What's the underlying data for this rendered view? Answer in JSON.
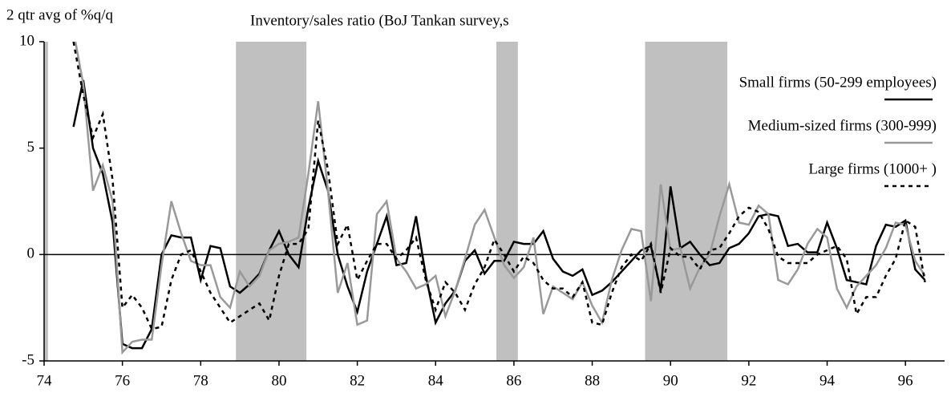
{
  "chart_data": {
    "type": "line",
    "title": "Inventory/sales ratio (BoJ Tankan survey,s",
    "y_label": "2 qtr avg of %q/q",
    "x": [
      74.75,
      75,
      75.25,
      75.5,
      75.75,
      76,
      76.25,
      76.5,
      76.75,
      77,
      77.25,
      77.5,
      77.75,
      78,
      78.25,
      78.5,
      78.75,
      79,
      79.25,
      79.5,
      79.75,
      80,
      80.25,
      80.5,
      80.75,
      81,
      81.25,
      81.5,
      81.75,
      82,
      82.25,
      82.5,
      82.75,
      83,
      83.25,
      83.5,
      83.75,
      84,
      84.25,
      84.5,
      84.75,
      85,
      85.25,
      85.5,
      85.75,
      86,
      86.25,
      86.5,
      86.75,
      87,
      87.25,
      87.5,
      87.75,
      88,
      88.25,
      88.5,
      88.75,
      89,
      89.25,
      89.5,
      89.75,
      90,
      90.25,
      90.5,
      90.75,
      91,
      91.25,
      91.5,
      91.75,
      92,
      92.25,
      92.5,
      92.75,
      93,
      93.25,
      93.5,
      93.75,
      94,
      94.25,
      94.5,
      94.75,
      95,
      95.25,
      95.5,
      95.75,
      96,
      96.25,
      96.5
    ],
    "series": [
      {
        "name": "Small firms (50-299 employees)",
        "color": "#000000",
        "style": "solid",
        "values": [
          6,
          8.2,
          5,
          3.8,
          1.5,
          -4.2,
          -4.4,
          -4.4,
          -3.5,
          0,
          0.9,
          0.8,
          0.8,
          -1.2,
          0.4,
          0.3,
          -1.5,
          -1.8,
          -1.4,
          -0.9,
          0.2,
          1.1,
          0,
          -0.6,
          2.2,
          4.4,
          3,
          0,
          -1.5,
          -2.7,
          -0.8,
          0.5,
          1.8,
          -0.5,
          -0.4,
          1.8,
          -1,
          -3.2,
          -2.3,
          -1.7,
          -0.3,
          0.2,
          -0.9,
          -0.3,
          -0.3,
          0.6,
          0.5,
          0.5,
          1.1,
          -0.2,
          -0.8,
          -1,
          -0.7,
          -1.9,
          -1.7,
          -1.3,
          -0.8,
          -0.3,
          0.2,
          0.4,
          -1.7,
          3.2,
          0.3,
          0.6,
          0,
          -0.5,
          -0.4,
          0.3,
          0.5,
          1,
          1.8,
          1.9,
          1.8,
          0.4,
          0.5,
          0.1,
          0.1,
          1.5,
          0.3,
          -1.2,
          -1.3,
          -1.4,
          0.4,
          1.4,
          1.3,
          1.6,
          -0.7,
          -1.2
        ]
      },
      {
        "name": "Medium-sized firms (300-999)",
        "color": "#999999",
        "style": "solid",
        "values": [
          10.5,
          8,
          3,
          4.2,
          2.5,
          -4.6,
          -4.1,
          -4,
          -4,
          -0.5,
          2.5,
          1,
          -0.3,
          -0.5,
          -0.5,
          -2,
          -2.5,
          -0.8,
          -1.5,
          -1,
          0.2,
          0.5,
          0.6,
          0.8,
          3.8,
          7.2,
          3,
          -1.8,
          -0.4,
          -3.3,
          -3.1,
          1.9,
          2.5,
          -0.2,
          -0.8,
          -1.6,
          -1.4,
          -1,
          -2.9,
          -1.7,
          -0.2,
          1.4,
          2.1,
          0.8,
          -0.5,
          -1.1,
          -0.6,
          0.8,
          -2.8,
          -1.5,
          -1.8,
          -2.1,
          -1.3,
          -2.4,
          -3.2,
          -1.2,
          0.2,
          1.2,
          1.1,
          -2.2,
          3.3,
          0.2,
          0.3,
          -1.6,
          -0.6,
          0,
          1.8,
          3.3,
          1.5,
          1.4,
          2.3,
          1.9,
          -1.2,
          -1.4,
          -0.7,
          0.5,
          1.2,
          0.8,
          -1.6,
          -2.5,
          -1.5,
          -1,
          -0.5,
          0.3,
          1.5,
          1.4,
          -0.3,
          -1
        ]
      },
      {
        "name": "Large firms (1000+ )",
        "color": "#000000",
        "style": "dotted",
        "values": [
          10,
          7.5,
          5.5,
          6.6,
          3.5,
          -2.5,
          -1.9,
          -2.5,
          -3.5,
          -3.4,
          -1.2,
          0,
          0.2,
          -0.8,
          -1.8,
          -2.5,
          -3.2,
          -2.9,
          -2.6,
          -2.3,
          -3.1,
          -1,
          0.5,
          0.5,
          1.2,
          6.3,
          4,
          0.5,
          1.4,
          -1.2,
          -0.3,
          0.5,
          0.5,
          -0.2,
          0.2,
          0.8,
          -1.2,
          -2.6,
          -1.3,
          -1.8,
          -2.6,
          -1.4,
          -0.6,
          0.7,
          0,
          -0.8,
          -0.1,
          -0.4,
          -1.2,
          -1.6,
          -1.6,
          -2,
          -1.3,
          -3.2,
          -3.3,
          -1.8,
          -0.6,
          0,
          -0.3,
          0.5,
          -1.8,
          0.3,
          -0.1,
          -0.1,
          -0.7,
          0.2,
          0.3,
          1,
          1.8,
          2.2,
          2,
          1.2,
          -0.1,
          -0.4,
          -0.4,
          -0.4,
          0,
          0.2,
          0.4,
          -0.2,
          -2.8,
          -2,
          -2,
          -1,
          -0.2,
          1.6,
          1.3,
          -1.3
        ]
      }
    ],
    "shaded_periods": [
      [
        74,
        74.1
      ],
      [
        78.9,
        80.7
      ],
      [
        85.55,
        86.1
      ],
      [
        89.35,
        91.45
      ]
    ],
    "shade_color": "#c0c0c0",
    "xlim": [
      74,
      97
    ],
    "xticks": [
      74,
      76,
      78,
      80,
      82,
      84,
      86,
      88,
      90,
      92,
      94,
      96
    ],
    "ylim": [
      -5,
      10
    ],
    "yticks": [
      -5,
      0,
      5,
      10
    ],
    "legend": "upper right"
  }
}
